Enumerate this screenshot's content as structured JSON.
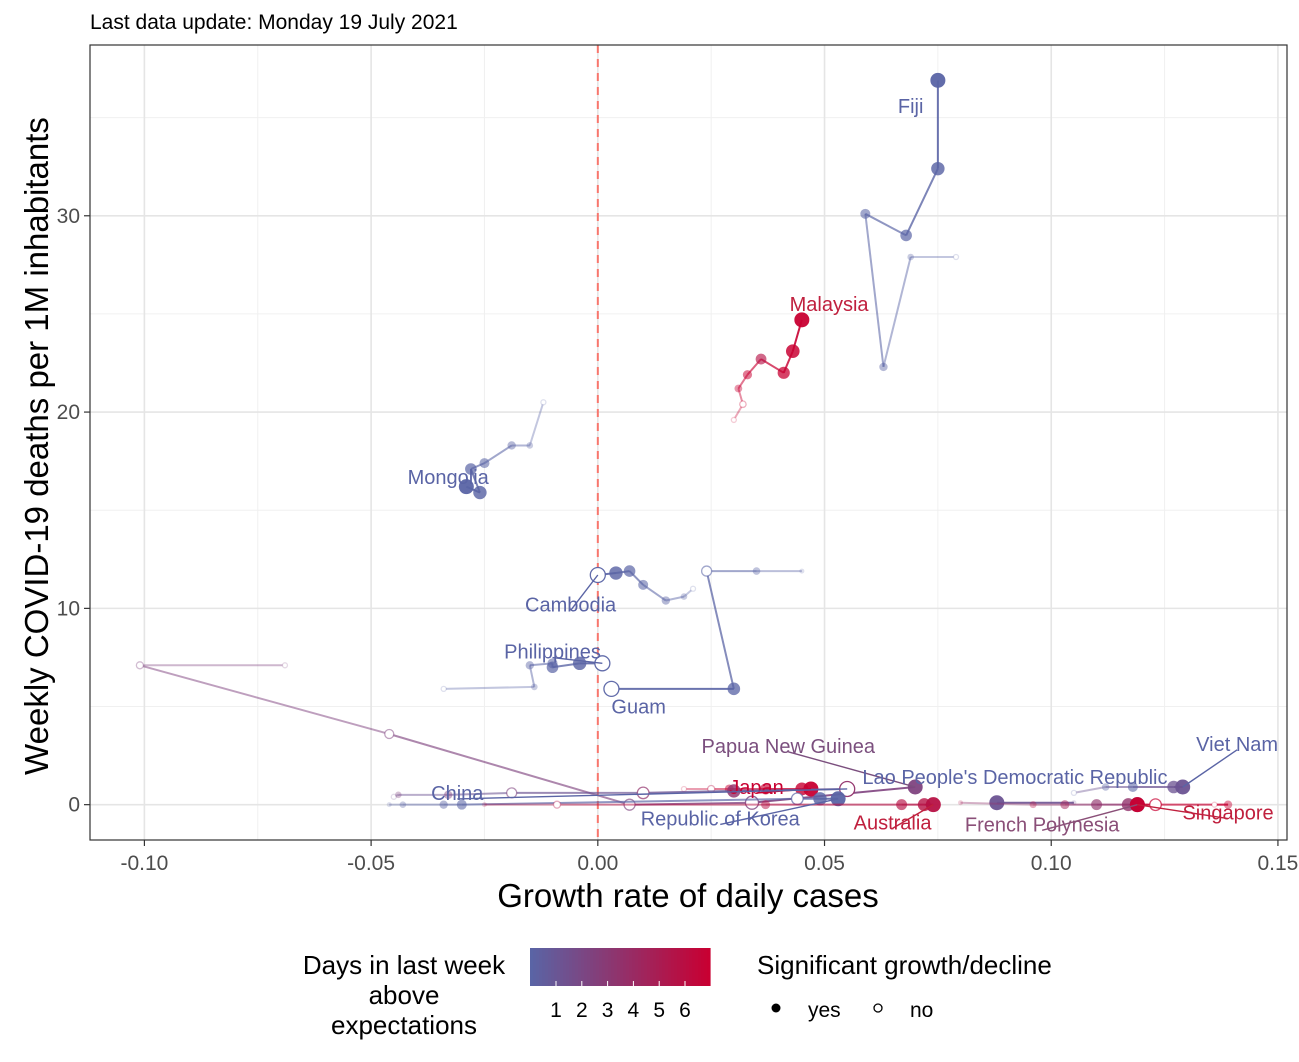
{
  "chart_data": {
    "type": "scatter",
    "subtitle": "Last data update: Monday 19 July 2021",
    "xlabel": "Growth rate of daily cases",
    "ylabel": "Weekly COVID-19 deaths per 1M inhabitants",
    "xlim": [
      -0.112,
      0.152
    ],
    "ylim": [
      -1.8,
      38.7
    ],
    "x_ticks": [
      -0.1,
      -0.05,
      0.0,
      0.05,
      0.1,
      0.15
    ],
    "x_tick_labels": [
      "-0.10",
      "-0.05",
      "0.00",
      "0.05",
      "0.10",
      "0.15"
    ],
    "y_ticks": [
      0,
      10,
      20,
      30
    ],
    "y_tick_labels": [
      "0",
      "10",
      "20",
      "30"
    ],
    "grid": true,
    "reference_line": {
      "x": 0,
      "color": "#f8766d",
      "style": "dashed"
    },
    "color_scale": {
      "title": [
        "Days in last week",
        "above",
        "expectations"
      ],
      "labels": [
        "1",
        "2",
        "3",
        "4",
        "5",
        "6"
      ],
      "low_color": "#5a64a5",
      "high_color": "#c80032"
    },
    "shape_legend": {
      "title": "Significant growth/decline",
      "items": [
        {
          "label": "yes",
          "filled": true
        },
        {
          "label": "no",
          "filled": false
        }
      ]
    },
    "series": [
      {
        "name": "Fiji",
        "days": 0,
        "label_at": [
          0.069,
          35.6
        ],
        "label_color": "#5a64a5",
        "points": [
          [
            0.079,
            27.9,
            0,
            0
          ],
          [
            0.069,
            27.9,
            0,
            1
          ],
          [
            0.063,
            22.3,
            0,
            1
          ],
          [
            0.059,
            30.1,
            0,
            1
          ],
          [
            0.068,
            29.0,
            0,
            1
          ],
          [
            0.075,
            32.4,
            0,
            1
          ],
          [
            0.075,
            36.9,
            0,
            1
          ]
        ]
      },
      {
        "name": "Malaysia",
        "days": 6,
        "label_at": [
          0.051,
          25.5
        ],
        "label_color": "#c0203e",
        "points": [
          [
            0.03,
            19.6,
            6,
            0
          ],
          [
            0.032,
            20.4,
            6,
            0
          ],
          [
            0.031,
            21.2,
            6,
            1
          ],
          [
            0.033,
            21.9,
            6,
            1
          ],
          [
            0.036,
            22.7,
            5,
            1
          ],
          [
            0.041,
            22.0,
            6,
            1
          ],
          [
            0.043,
            23.1,
            6,
            1
          ],
          [
            0.045,
            24.7,
            6,
            1
          ]
        ]
      },
      {
        "name": "Mongolia",
        "days": 0,
        "label_at": [
          -0.033,
          16.7
        ],
        "label_color": "#5a64a5",
        "points": [
          [
            -0.012,
            20.5,
            0,
            0
          ],
          [
            -0.015,
            18.3,
            0,
            1
          ],
          [
            -0.019,
            18.3,
            0,
            1
          ],
          [
            -0.025,
            17.4,
            0,
            1
          ],
          [
            -0.028,
            17.1,
            0,
            1
          ],
          [
            -0.026,
            15.9,
            0,
            1
          ],
          [
            -0.029,
            16.2,
            0,
            1
          ]
        ]
      },
      {
        "name": "Cambodia",
        "days": 0,
        "label_at": [
          -0.006,
          10.2
        ],
        "label_color": "#5a64a5",
        "points": [
          [
            0.021,
            11.0,
            0,
            0
          ],
          [
            0.019,
            10.6,
            0,
            1
          ],
          [
            0.015,
            10.4,
            0,
            1
          ],
          [
            0.01,
            11.2,
            0,
            1
          ],
          [
            0.007,
            11.9,
            0,
            1
          ],
          [
            0.004,
            11.8,
            0,
            1
          ],
          [
            0.0,
            11.7,
            0,
            0
          ]
        ]
      },
      {
        "name": "Guam",
        "days": 0,
        "label_at": [
          0.009,
          5.0
        ],
        "label_color": "#5a64a5",
        "points": [
          [
            0.045,
            11.9,
            0,
            1
          ],
          [
            0.035,
            11.9,
            0,
            1
          ],
          [
            0.024,
            11.9,
            0,
            0
          ],
          [
            0.03,
            5.9,
            0,
            1
          ],
          [
            0.003,
            5.9,
            0,
            0
          ]
        ]
      },
      {
        "name": "Philippines",
        "days": 0,
        "label_at": [
          -0.01,
          7.8
        ],
        "label_color": "#5a64a5",
        "points": [
          [
            -0.034,
            5.9,
            0,
            0
          ],
          [
            -0.014,
            6.0,
            0,
            1
          ],
          [
            -0.015,
            7.1,
            0,
            1
          ],
          [
            -0.01,
            7.2,
            0,
            1
          ],
          [
            -0.01,
            7.0,
            0,
            1
          ],
          [
            -0.004,
            7.2,
            0,
            1
          ],
          [
            0.001,
            7.2,
            0,
            0
          ]
        ]
      },
      {
        "name": "Papua New Guinea",
        "days": 2,
        "label_at": [
          0.042,
          3.0
        ],
        "label_color": "#7b4f7e",
        "points": [
          [
            -0.069,
            7.1,
            2,
            0
          ],
          [
            -0.101,
            7.1,
            2,
            0
          ],
          [
            -0.046,
            3.6,
            2,
            0
          ],
          [
            0.007,
            0.0,
            2,
            0
          ],
          [
            0.034,
            0.1,
            2,
            0
          ],
          [
            0.07,
            0.9,
            2,
            1
          ]
        ]
      },
      {
        "name": "Japan",
        "days": 6,
        "label_at": [
          0.035,
          0.9
        ],
        "label_color": "#c80032",
        "points": [
          [
            0.019,
            0.8,
            6,
            0
          ],
          [
            0.025,
            0.8,
            5,
            0
          ],
          [
            0.029,
            0.8,
            6,
            1
          ],
          [
            0.037,
            0.8,
            6,
            1
          ],
          [
            0.045,
            0.8,
            6,
            1
          ],
          [
            0.047,
            0.8,
            6,
            1
          ]
        ]
      },
      {
        "name": "China",
        "days": 1,
        "label_at": [
          -0.031,
          0.6
        ],
        "label_color": "#5a64a5",
        "points": [
          [
            -0.045,
            0.4,
            1,
            0
          ],
          [
            -0.044,
            0.5,
            2,
            1
          ],
          [
            -0.033,
            0.5,
            2,
            1
          ],
          [
            -0.019,
            0.6,
            2,
            0
          ],
          [
            0.01,
            0.6,
            3,
            0
          ],
          [
            0.03,
            0.7,
            3,
            1
          ],
          [
            0.055,
            0.8,
            3,
            0
          ]
        ]
      },
      {
        "name": "Lao People's Democratic Republic",
        "days": 1,
        "label_at": [
          0.092,
          1.4
        ],
        "label_color": "#5a64a5",
        "points": [
          [
            0.105,
            0.1,
            1,
            1
          ],
          [
            0.088,
            0.1,
            1,
            1
          ]
        ]
      },
      {
        "name": "Republic of Korea",
        "days": 0,
        "label_at": [
          0.027,
          -0.7
        ],
        "label_color": "#5a64a5",
        "points": [
          [
            -0.046,
            0.0,
            0,
            1
          ],
          [
            -0.043,
            0.0,
            0,
            1
          ],
          [
            -0.034,
            0.0,
            0,
            1
          ],
          [
            -0.03,
            0.0,
            0,
            1
          ],
          [
            0.044,
            0.3,
            0,
            0
          ],
          [
            0.049,
            0.3,
            0,
            1
          ],
          [
            0.053,
            0.3,
            0,
            1
          ]
        ]
      },
      {
        "name": "Viet Nam",
        "days": 1,
        "label_at": [
          0.141,
          3.1
        ],
        "label_color": "#5a64a5",
        "points": [
          [
            0.105,
            0.6,
            0,
            0
          ],
          [
            0.112,
            0.9,
            0,
            1
          ],
          [
            0.118,
            0.9,
            0,
            1
          ],
          [
            0.127,
            0.9,
            1,
            1
          ],
          [
            0.129,
            0.9,
            1,
            1
          ]
        ]
      },
      {
        "name": "Australia",
        "days": 5,
        "label_at": [
          0.065,
          -0.9
        ],
        "label_color": "#c0203e",
        "points": [
          [
            -0.025,
            0.0,
            5,
            1
          ],
          [
            -0.009,
            0.0,
            5,
            0
          ],
          [
            0.037,
            0.0,
            5,
            1
          ],
          [
            0.067,
            0.0,
            5,
            1
          ],
          [
            0.072,
            0.0,
            5,
            1
          ],
          [
            0.074,
            0.0,
            5,
            1
          ]
        ]
      },
      {
        "name": "French Polynesia",
        "days": 3,
        "label_at": [
          0.098,
          -1.0
        ],
        "label_color": "#8a4f78",
        "points": [
          [
            0.08,
            0.1,
            5,
            1
          ],
          [
            0.096,
            0.0,
            5,
            1
          ],
          [
            0.103,
            0.0,
            4,
            1
          ],
          [
            0.11,
            0.0,
            3,
            1
          ],
          [
            0.117,
            0.0,
            3,
            1
          ],
          [
            0.119,
            0.0,
            3,
            1
          ]
        ]
      },
      {
        "name": "Singapore",
        "days": 6,
        "label_at": [
          0.139,
          -0.4
        ],
        "label_color": "#c0203e",
        "points": [
          [
            0.136,
            0.0,
            6,
            0
          ],
          [
            0.139,
            0.0,
            6,
            1
          ],
          [
            0.123,
            0.0,
            6,
            0
          ],
          [
            0.119,
            0.0,
            6,
            1
          ]
        ]
      }
    ]
  }
}
